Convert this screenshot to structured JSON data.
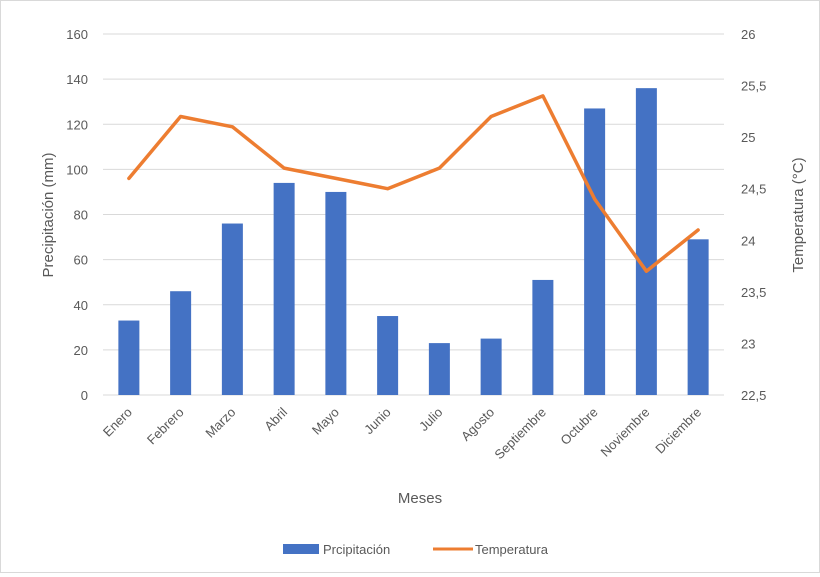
{
  "chart_data": {
    "type": "bar",
    "categories": [
      "Enero",
      "Febrero",
      "Marzo",
      "Abril",
      "Mayo",
      "Junio",
      "Julio",
      "Agosto",
      "Septiembre",
      "Octubre",
      "Noviembre",
      "Diciembre"
    ],
    "series": [
      {
        "name": "Prcipitación",
        "type": "bar",
        "axis": "left",
        "color": "#4472C4",
        "values": [
          33,
          46,
          76,
          94,
          90,
          35,
          23,
          25,
          51,
          127,
          136,
          69
        ]
      },
      {
        "name": "Temperatura",
        "type": "line",
        "axis": "right",
        "color": "#ED7D31",
        "values": [
          24.6,
          25.2,
          25.1,
          24.7,
          24.6,
          24.5,
          24.7,
          25.2,
          25.4,
          24.4,
          23.7,
          24.1
        ]
      }
    ],
    "xlabel": "Meses",
    "ylabel": "Precipitación (mm)",
    "y2label": "Temperatura (°C)",
    "ylim": [
      0,
      160
    ],
    "y2lim": [
      22.5,
      26
    ],
    "yticks": [
      "0",
      "20",
      "40",
      "60",
      "80",
      "100",
      "120",
      "140",
      "160"
    ],
    "y2ticks": [
      "22,5",
      "23",
      "23,5",
      "24",
      "24,5",
      "25",
      "25,5",
      "26"
    ],
    "grid": true,
    "legend": "bottom"
  }
}
